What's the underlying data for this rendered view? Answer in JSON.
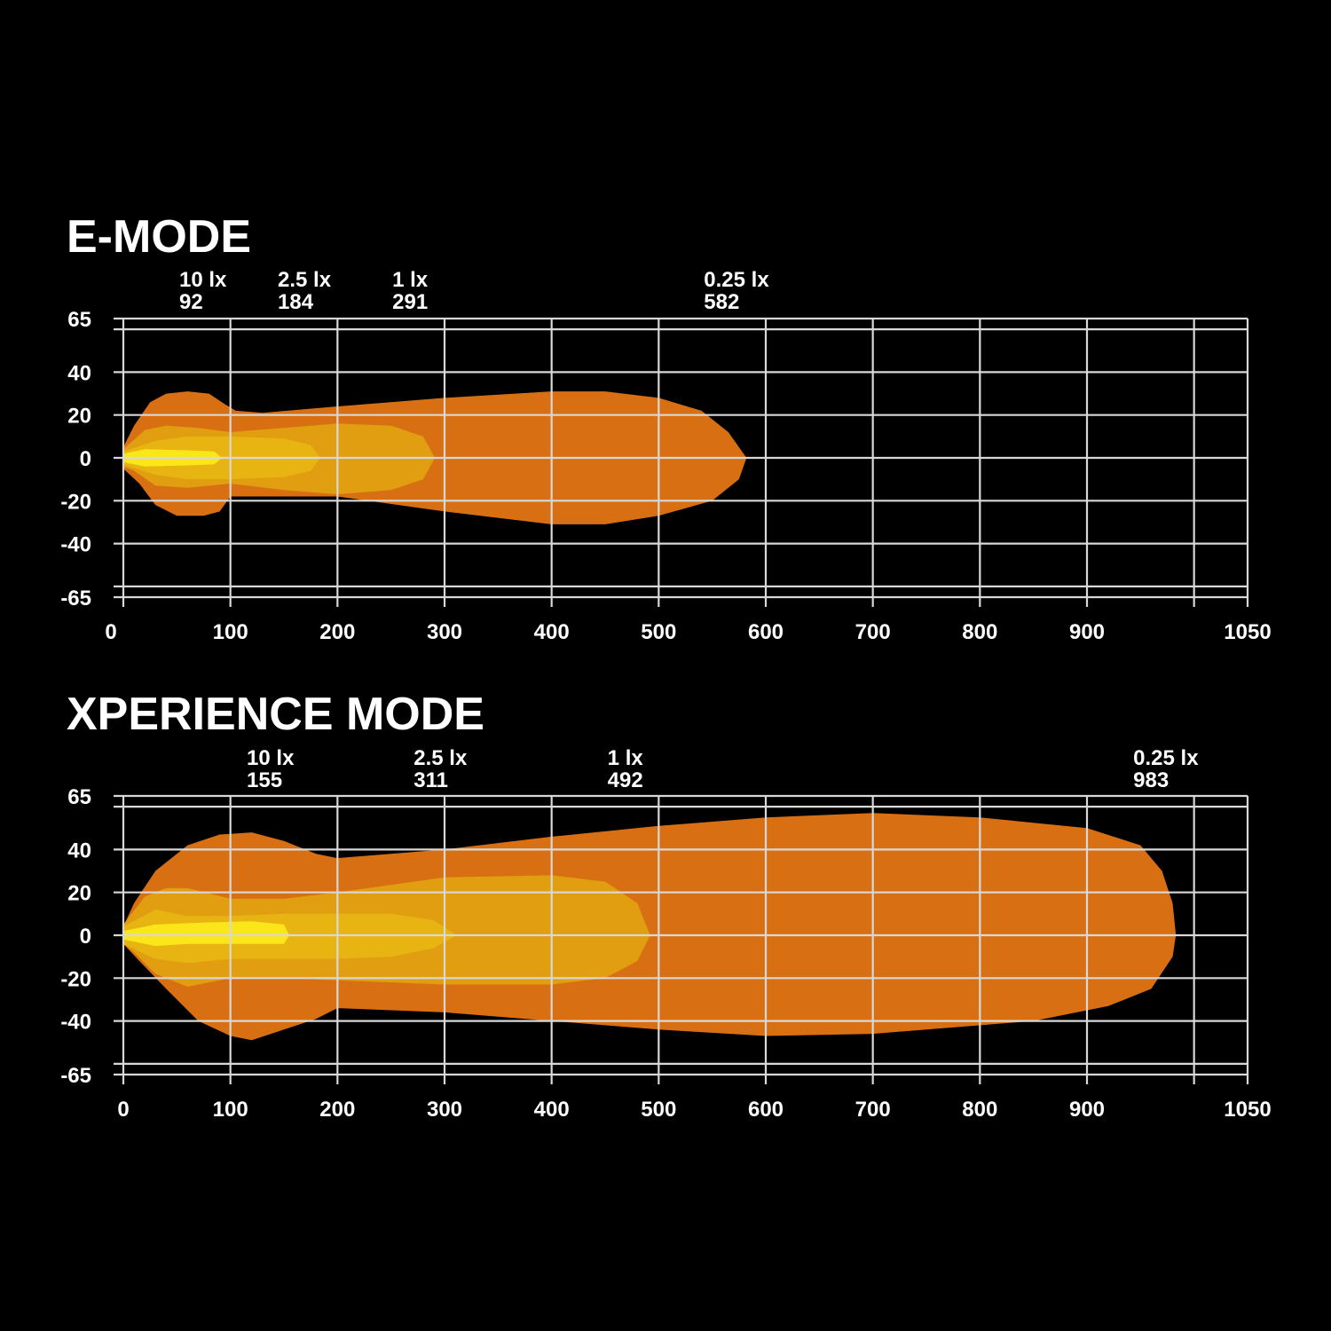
{
  "colors": {
    "background": "#000000",
    "grid": "#d8d8d8",
    "text": "#ffffff",
    "lux_0_25": "#d87013",
    "lux_1": "#e09e10",
    "lux_2_5": "#e8b412",
    "lux_10": "#fbe61a"
  },
  "chart_data": [
    {
      "type": "area",
      "title": "E-MODE",
      "xlim": [
        0,
        1050
      ],
      "ylim": [
        -65,
        65
      ],
      "x_ticks": [
        "0",
        "100",
        "200",
        "300",
        "400",
        "500",
        "600",
        "700",
        "800",
        "900",
        "1050"
      ],
      "y_ticks": [
        "65",
        "40",
        "20",
        "0",
        "-20",
        "-40",
        "-65"
      ],
      "grid": true,
      "lux_labels": [
        {
          "lux": "10 lx",
          "distance": "92"
        },
        {
          "lux": "2.5 lx",
          "distance": "184"
        },
        {
          "lux": "1 lx",
          "distance": "291"
        },
        {
          "lux": "0.25 lx",
          "distance": "582"
        }
      ],
      "series": [
        {
          "level": "0.25 lx",
          "color_key": "lux_0_25",
          "points": [
            [
              0,
              5
            ],
            [
              10,
              15
            ],
            [
              25,
              26
            ],
            [
              40,
              30
            ],
            [
              60,
              31
            ],
            [
              80,
              30
            ],
            [
              95,
              25
            ],
            [
              105,
              22
            ],
            [
              130,
              21
            ],
            [
              200,
              24
            ],
            [
              300,
              28
            ],
            [
              400,
              31
            ],
            [
              450,
              31
            ],
            [
              500,
              28
            ],
            [
              540,
              22
            ],
            [
              565,
              12
            ],
            [
              582,
              0
            ],
            [
              575,
              -10
            ],
            [
              550,
              -20
            ],
            [
              500,
              -27
            ],
            [
              450,
              -31
            ],
            [
              400,
              -31
            ],
            [
              300,
              -25
            ],
            [
              200,
              -18
            ],
            [
              100,
              -18
            ],
            [
              90,
              -25
            ],
            [
              75,
              -27
            ],
            [
              50,
              -27
            ],
            [
              30,
              -22
            ],
            [
              15,
              -12
            ],
            [
              0,
              -5
            ]
          ]
        },
        {
          "level": "1 lx",
          "color_key": "lux_1",
          "points": [
            [
              0,
              4
            ],
            [
              20,
              13
            ],
            [
              40,
              15
            ],
            [
              70,
              14
            ],
            [
              100,
              12
            ],
            [
              150,
              14
            ],
            [
              200,
              16
            ],
            [
              250,
              15
            ],
            [
              280,
              10
            ],
            [
              291,
              0
            ],
            [
              280,
              -10
            ],
            [
              250,
              -15
            ],
            [
              200,
              -17
            ],
            [
              150,
              -15
            ],
            [
              100,
              -12
            ],
            [
              60,
              -14
            ],
            [
              30,
              -13
            ],
            [
              10,
              -6
            ],
            [
              0,
              -4
            ]
          ]
        },
        {
          "level": "2.5 lx",
          "color_key": "lux_2_5",
          "points": [
            [
              0,
              3
            ],
            [
              30,
              8
            ],
            [
              60,
              10
            ],
            [
              100,
              10
            ],
            [
              150,
              9
            ],
            [
              175,
              6
            ],
            [
              184,
              0
            ],
            [
              175,
              -6
            ],
            [
              150,
              -9
            ],
            [
              100,
              -10
            ],
            [
              60,
              -10
            ],
            [
              30,
              -8
            ],
            [
              0,
              -3
            ]
          ]
        },
        {
          "level": "10 lx",
          "color_key": "lux_10",
          "points": [
            [
              0,
              2
            ],
            [
              20,
              4
            ],
            [
              60,
              3.5
            ],
            [
              85,
              3
            ],
            [
              92,
              0
            ],
            [
              85,
              -3
            ],
            [
              60,
              -3.5
            ],
            [
              20,
              -4
            ],
            [
              0,
              -2
            ]
          ]
        }
      ]
    },
    {
      "type": "area",
      "title": "XPERIENCE MODE",
      "xlim": [
        0,
        1050
      ],
      "ylim": [
        -65,
        65
      ],
      "x_ticks": [
        "0",
        "100",
        "200",
        "300",
        "400",
        "500",
        "600",
        "700",
        "800",
        "900",
        "1050"
      ],
      "y_ticks": [
        "65",
        "40",
        "20",
        "0",
        "-20",
        "-40",
        "-65"
      ],
      "grid": true,
      "lux_labels": [
        {
          "lux": "10 lx",
          "distance": "155"
        },
        {
          "lux": "2.5 lx",
          "distance": "311"
        },
        {
          "lux": "1 lx",
          "distance": "492"
        },
        {
          "lux": "0.25 lx",
          "distance": "983"
        }
      ],
      "series": [
        {
          "level": "0.25 lx",
          "color_key": "lux_0_25",
          "points": [
            [
              0,
              4
            ],
            [
              10,
              15
            ],
            [
              30,
              30
            ],
            [
              60,
              42
            ],
            [
              90,
              47
            ],
            [
              120,
              48
            ],
            [
              150,
              44
            ],
            [
              180,
              38
            ],
            [
              200,
              36
            ],
            [
              300,
              40
            ],
            [
              400,
              46
            ],
            [
              500,
              51
            ],
            [
              600,
              55
            ],
            [
              700,
              57
            ],
            [
              800,
              55
            ],
            [
              900,
              50
            ],
            [
              950,
              42
            ],
            [
              970,
              30
            ],
            [
              980,
              15
            ],
            [
              983,
              0
            ],
            [
              980,
              -10
            ],
            [
              960,
              -25
            ],
            [
              920,
              -33
            ],
            [
              850,
              -40
            ],
            [
              700,
              -46
            ],
            [
              600,
              -47
            ],
            [
              500,
              -44
            ],
            [
              400,
              -40
            ],
            [
              300,
              -36
            ],
            [
              200,
              -34
            ],
            [
              180,
              -39
            ],
            [
              150,
              -44
            ],
            [
              120,
              -49
            ],
            [
              100,
              -47
            ],
            [
              70,
              -40
            ],
            [
              40,
              -25
            ],
            [
              15,
              -12
            ],
            [
              0,
              -4
            ]
          ]
        },
        {
          "level": "1 lx",
          "color_key": "lux_1",
          "points": [
            [
              0,
              5
            ],
            [
              20,
              18
            ],
            [
              40,
              22
            ],
            [
              60,
              22
            ],
            [
              100,
              17
            ],
            [
              150,
              17
            ],
            [
              200,
              20
            ],
            [
              300,
              27
            ],
            [
              400,
              28
            ],
            [
              450,
              25
            ],
            [
              480,
              15
            ],
            [
              492,
              0
            ],
            [
              480,
              -12
            ],
            [
              450,
              -20
            ],
            [
              400,
              -23
            ],
            [
              300,
              -23
            ],
            [
              200,
              -21
            ],
            [
              150,
              -20
            ],
            [
              100,
              -20
            ],
            [
              60,
              -24
            ],
            [
              30,
              -18
            ],
            [
              10,
              -8
            ],
            [
              0,
              -4
            ]
          ]
        },
        {
          "level": "2.5 lx",
          "color_key": "lux_2_5",
          "points": [
            [
              0,
              4
            ],
            [
              30,
              12
            ],
            [
              60,
              9
            ],
            [
              100,
              9
            ],
            [
              150,
              10
            ],
            [
              250,
              10
            ],
            [
              290,
              7
            ],
            [
              311,
              0
            ],
            [
              290,
              -6
            ],
            [
              250,
              -10
            ],
            [
              200,
              -11
            ],
            [
              150,
              -11
            ],
            [
              100,
              -11
            ],
            [
              60,
              -13
            ],
            [
              30,
              -11
            ],
            [
              0,
              -4
            ]
          ]
        },
        {
          "level": "10 lx",
          "color_key": "lux_10",
          "points": [
            [
              0,
              2
            ],
            [
              30,
              5
            ],
            [
              80,
              6
            ],
            [
              120,
              6.5
            ],
            [
              150,
              5
            ],
            [
              155,
              0
            ],
            [
              150,
              -4
            ],
            [
              100,
              -4
            ],
            [
              60,
              -4
            ],
            [
              30,
              -5
            ],
            [
              0,
              -2
            ]
          ]
        }
      ]
    }
  ]
}
